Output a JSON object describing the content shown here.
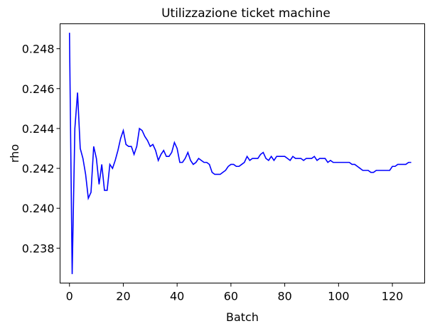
{
  "chart_data": {
    "type": "line",
    "title": "Utilizzazione ticket machine",
    "xlabel": "Batch",
    "ylabel": "rho",
    "xlim": [
      -3.5,
      132
    ],
    "ylim": [
      0.23625,
      0.24925
    ],
    "xticks": [
      0,
      20,
      40,
      60,
      80,
      100,
      120
    ],
    "yticks": [
      0.238,
      0.24,
      0.242,
      0.244,
      0.246,
      0.248
    ],
    "ytick_labels": [
      "0.238",
      "0.240",
      "0.242",
      "0.244",
      "0.246",
      "0.248"
    ],
    "grid": false,
    "series": [
      {
        "color": "#0000ff",
        "x": [
          0,
          1,
          2,
          3,
          4,
          5,
          6,
          7,
          8,
          9,
          10,
          11,
          12,
          13,
          14,
          15,
          16,
          17,
          18,
          19,
          20,
          21,
          22,
          23,
          24,
          25,
          26,
          27,
          28,
          29,
          30,
          31,
          32,
          33,
          34,
          35,
          36,
          37,
          38,
          39,
          40,
          41,
          42,
          43,
          44,
          45,
          46,
          47,
          48,
          49,
          50,
          51,
          52,
          53,
          54,
          55,
          56,
          57,
          58,
          59,
          60,
          61,
          62,
          63,
          64,
          65,
          66,
          67,
          68,
          69,
          70,
          71,
          72,
          73,
          74,
          75,
          76,
          77,
          78,
          79,
          80,
          81,
          82,
          83,
          84,
          85,
          86,
          87,
          88,
          89,
          90,
          91,
          92,
          93,
          94,
          95,
          96,
          97,
          98,
          99,
          100,
          101,
          102,
          103,
          104,
          105,
          106,
          107,
          108,
          109,
          110,
          111,
          112,
          113,
          114,
          115,
          116,
          117,
          118,
          119,
          120,
          121,
          122,
          123,
          124,
          125,
          126,
          127
        ],
        "values": [
          0.2488,
          0.2367,
          0.244,
          0.2458,
          0.243,
          0.2425,
          0.2417,
          0.2405,
          0.2408,
          0.2431,
          0.2425,
          0.2412,
          0.2422,
          0.2409,
          0.2409,
          0.2422,
          0.242,
          0.2424,
          0.2429,
          0.2435,
          0.2439,
          0.2432,
          0.2431,
          0.2431,
          0.2427,
          0.2431,
          0.244,
          0.2439,
          0.2436,
          0.2434,
          0.2431,
          0.2432,
          0.2429,
          0.2424,
          0.2427,
          0.2429,
          0.2426,
          0.2426,
          0.2428,
          0.2433,
          0.243,
          0.2423,
          0.2423,
          0.2425,
          0.2428,
          0.2424,
          0.2422,
          0.2423,
          0.2425,
          0.2424,
          0.2423,
          0.2423,
          0.2422,
          0.2418,
          0.2417,
          0.2417,
          0.2417,
          0.2418,
          0.2419,
          0.2421,
          0.2422,
          0.2422,
          0.2421,
          0.2421,
          0.2422,
          0.2423,
          0.2426,
          0.2424,
          0.2425,
          0.2425,
          0.2425,
          0.2427,
          0.2428,
          0.2425,
          0.2424,
          0.2426,
          0.2424,
          0.2426,
          0.2426,
          0.2426,
          0.2426,
          0.2425,
          0.2424,
          0.2426,
          0.2425,
          0.2425,
          0.2425,
          0.2424,
          0.2425,
          0.2425,
          0.2425,
          0.2426,
          0.2424,
          0.2425,
          0.2425,
          0.2425,
          0.2423,
          0.2424,
          0.2423,
          0.2423,
          0.2423,
          0.2423,
          0.2423,
          0.2423,
          0.2423,
          0.2422,
          0.2422,
          0.2421,
          0.242,
          0.2419,
          0.2419,
          0.2419,
          0.2418,
          0.2418,
          0.2419,
          0.2419,
          0.2419,
          0.2419,
          0.2419,
          0.2419,
          0.2421,
          0.2421,
          0.2422,
          0.2422,
          0.2422,
          0.2422,
          0.2423,
          0.2423
        ]
      }
    ]
  }
}
